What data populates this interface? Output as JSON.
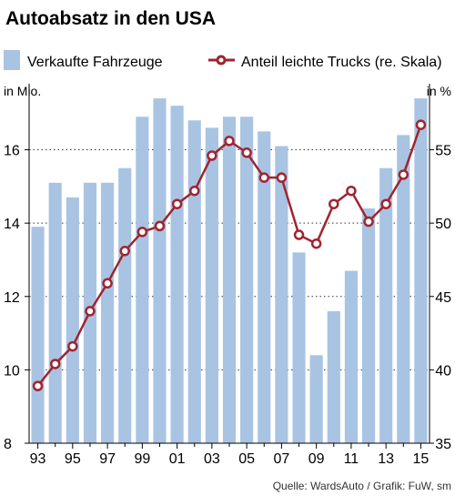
{
  "title": "Autoabsatz in den USA",
  "source": "Quelle: WardsAuto / Grafik: FuW, sm",
  "left_unit": "in Mio.",
  "right_unit": "in %",
  "colors": {
    "bar": "#a9c4e2",
    "line": "#a02430",
    "grid": "#333333",
    "axis": "#000000"
  },
  "chart_data": {
    "type": "bar+line",
    "title": "Autoabsatz in den USA",
    "years": [
      1993,
      1994,
      1995,
      1996,
      1997,
      1998,
      1999,
      2000,
      2001,
      2002,
      2003,
      2004,
      2005,
      2006,
      2007,
      2008,
      2009,
      2010,
      2011,
      2012,
      2013,
      2014,
      2015
    ],
    "x_tick_labels": [
      "93",
      "95",
      "97",
      "99",
      "01",
      "03",
      "05",
      "07",
      "09",
      "11",
      "13",
      "15"
    ],
    "y_left": {
      "label": "in Mio.",
      "lim": [
        8,
        17.8
      ],
      "ticks": [
        8,
        10,
        12,
        14,
        16
      ]
    },
    "y_right": {
      "label": "in %",
      "lim": [
        35,
        59.5
      ],
      "ticks": [
        35,
        40,
        45,
        50,
        55
      ]
    },
    "grid": "dotted horizontal",
    "legend": "top",
    "series": [
      {
        "name": "Verkaufte Fahrzeuge",
        "kind": "bar",
        "axis": "left",
        "values": [
          13.9,
          15.1,
          14.7,
          15.1,
          15.1,
          15.5,
          16.9,
          17.4,
          17.2,
          16.8,
          16.6,
          16.9,
          16.9,
          16.5,
          16.1,
          13.2,
          10.4,
          11.6,
          12.7,
          14.4,
          15.5,
          16.4,
          17.4
        ]
      },
      {
        "name": "Anteil leichte Trucks (re. Skala)",
        "kind": "line",
        "axis": "right",
        "values": [
          38.9,
          40.4,
          41.6,
          44.0,
          45.9,
          48.1,
          49.4,
          49.8,
          51.3,
          52.2,
          54.6,
          55.6,
          54.8,
          53.1,
          53.1,
          49.2,
          48.6,
          51.3,
          52.2,
          50.1,
          51.3,
          53.3,
          56.7
        ]
      }
    ]
  }
}
